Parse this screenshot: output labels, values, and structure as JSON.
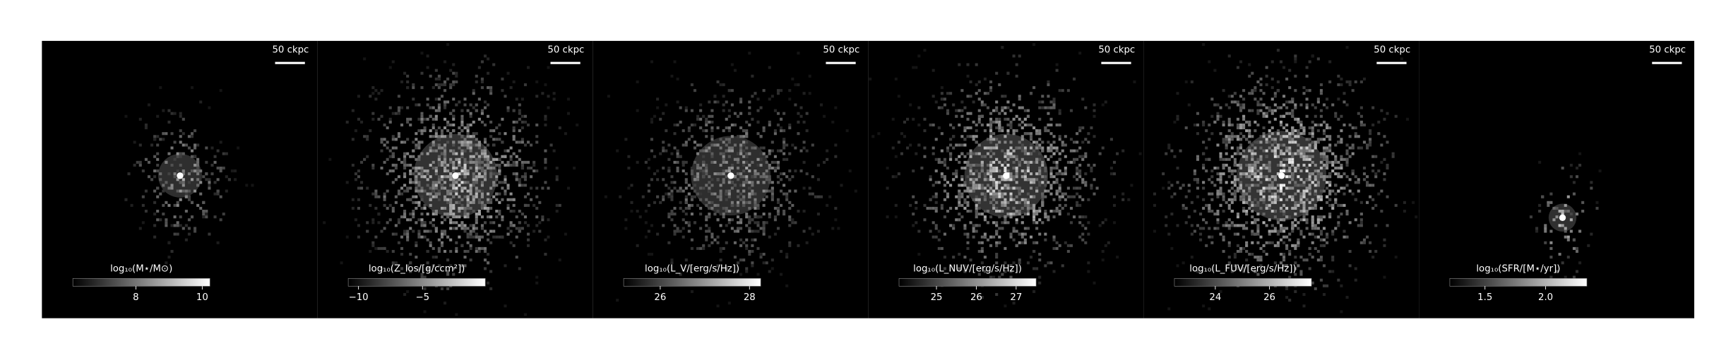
{
  "panels": [
    {
      "scale_label": "50 ckpc",
      "colorbar_label": "log₁₀(M⋆/M⊙)",
      "clim": [
        6.1,
        10.23
      ],
      "ticks": [
        8,
        10
      ]
    },
    {
      "scale_label": "50 ckpc",
      "colorbar_label": "log₁₀(Z_los/[g/ccm²])",
      "clim": [
        -10.8,
        -0.1
      ],
      "ticks": [
        {
          "value": -10,
          "label": "−10"
        },
        {
          "value": -5,
          "label": "−5"
        }
      ]
    },
    {
      "scale_label": "50 ckpc",
      "colorbar_label": "log₁₀(L_V/[erg/s/Hz])",
      "clim": [
        25.18,
        28.25
      ],
      "ticks": [
        26,
        28
      ]
    },
    {
      "scale_label": "50 ckpc",
      "colorbar_label": "log₁₀(L_NUV/[erg/s/Hz])",
      "clim": [
        24.06,
        27.5
      ],
      "ticks": [
        25,
        26,
        27
      ]
    },
    {
      "scale_label": "50 ckpc",
      "colorbar_label": "log₁₀(L_FUV/[erg/s/Hz])",
      "clim": [
        22.49,
        27.55
      ],
      "ticks": [
        24,
        26
      ]
    },
    {
      "scale_label": "50 ckpc",
      "colorbar_label": "log₁₀(SFR/[M⋆/yr])",
      "clim": [
        1.21,
        2.34
      ],
      "ticks": [
        1.5,
        {
          "value": 2.0,
          "label": "2.0"
        }
      ]
    }
  ]
}
